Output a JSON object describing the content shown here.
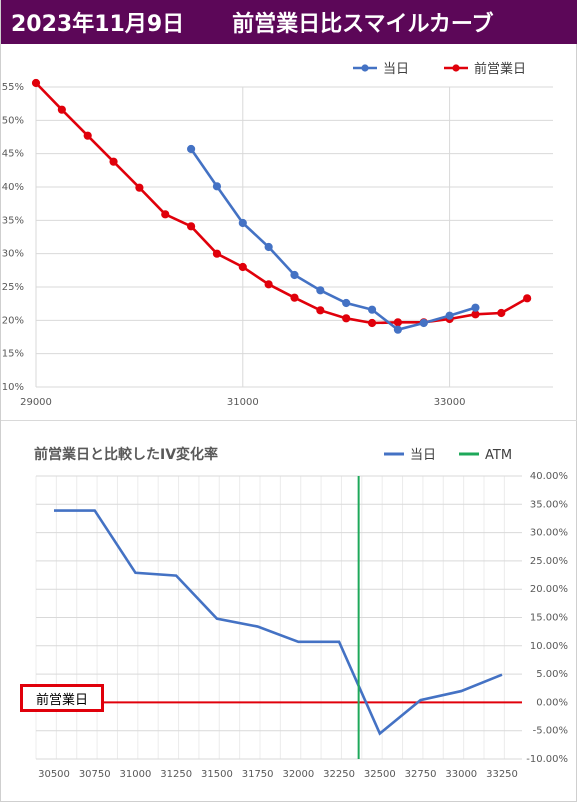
{
  "header": {
    "date": "2023年11月9日",
    "title": "前営業日比スマイルカーブ"
  },
  "colors": {
    "header_bg": "#5c0758",
    "today": "#4472c4",
    "prev": "#e0000b",
    "change": "#4472c4",
    "atm": "#1ea85a",
    "grid": "#d9d9d9"
  },
  "chart_data": [
    {
      "type": "line",
      "title": "",
      "xlabel": "",
      "ylabel": "",
      "xlim": [
        29000,
        34000
      ],
      "ylim": [
        0.1,
        0.55
      ],
      "x_ticks": [
        "29000",
        "31000",
        "33000"
      ],
      "y_ticks": [
        "10%",
        "15%",
        "20%",
        "25%",
        "30%",
        "35%",
        "40%",
        "45%",
        "50%",
        "55%"
      ],
      "grid": "vertical at x ticks, horizontal at y ticks",
      "legend": "top-right",
      "series": [
        {
          "name": "当日",
          "color": "#4472c4",
          "x": [
            30500,
            30750,
            31000,
            31250,
            31500,
            31750,
            32000,
            32250,
            32500,
            32750,
            33000,
            33250
          ],
          "y": [
            0.457,
            0.401,
            0.346,
            0.31,
            0.268,
            0.245,
            0.226,
            0.216,
            0.186,
            0.196,
            0.207,
            0.219
          ]
        },
        {
          "name": "前営業日",
          "color": "#e0000b",
          "x": [
            29000,
            29250,
            29500,
            29750,
            30000,
            30250,
            30500,
            30750,
            31000,
            31250,
            31500,
            31750,
            32000,
            32250,
            32500,
            32750,
            33000,
            33250,
            33500,
            33750
          ],
          "y": [
            0.556,
            0.516,
            0.477,
            0.438,
            0.399,
            0.359,
            0.341,
            0.3,
            0.28,
            0.254,
            0.234,
            0.215,
            0.203,
            0.196,
            0.197,
            0.197,
            0.202,
            0.209,
            0.211,
            0.233
          ]
        }
      ]
    },
    {
      "type": "line",
      "title": "前営業日と比較したIV変化率",
      "xlabel": "",
      "ylabel": "",
      "categories": [
        "30500",
        "30750",
        "31000",
        "31250",
        "31500",
        "31750",
        "32000",
        "32250",
        "32500",
        "32750",
        "33000",
        "33250"
      ],
      "y_ticks": [
        "40.00%",
        "35.00%",
        "30.00%",
        "25.00%",
        "20.00%",
        "15.00%",
        "10.00%",
        "5.00%",
        "0.00%",
        "-5.00%",
        "-10.00%"
      ],
      "ylim": [
        -0.1,
        0.4
      ],
      "legend": "top-right",
      "series": [
        {
          "name": "当日",
          "color": "#4472c4",
          "values": [
            0.339,
            0.339,
            0.229,
            0.224,
            0.148,
            0.134,
            0.107,
            0.107,
            -0.055,
            0.004,
            0.02,
            0.049
          ]
        },
        {
          "name": "ATM",
          "color": "#1ea85a",
          "type": "vertical-line",
          "position_category_value": 32370
        }
      ],
      "reference_line": {
        "label": "前営業日",
        "value": 0.0,
        "color": "#e0000b"
      }
    }
  ]
}
